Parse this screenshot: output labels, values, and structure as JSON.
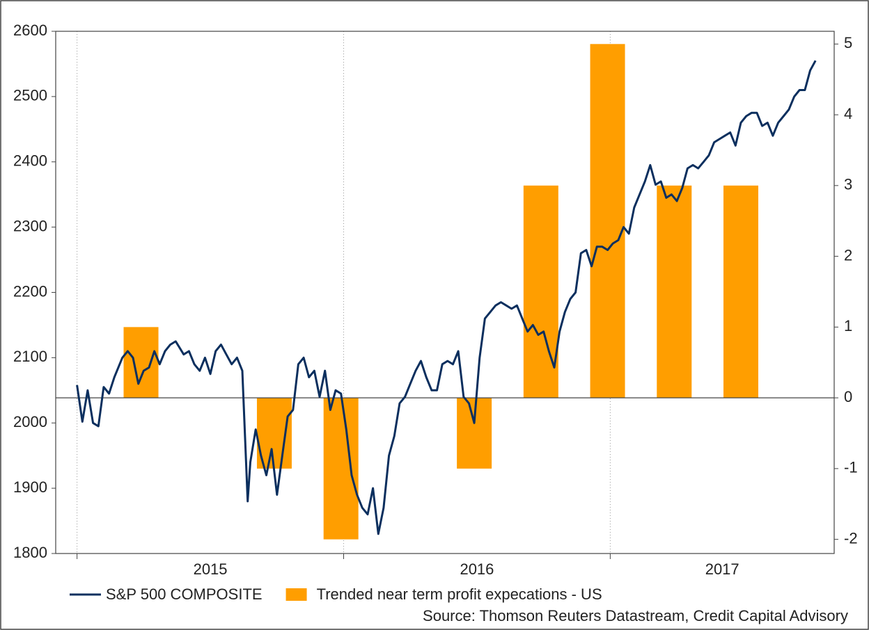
{
  "chart_data": {
    "type": "line",
    "source": "Source: Thomson Reuters Datastream, Credit Capital Advisory",
    "xlim": [
      2014.92,
      2017.84
    ],
    "xticks": [
      {
        "value": 2015,
        "label": "2015"
      },
      {
        "value": 2016,
        "label": "2016"
      },
      {
        "value": 2017,
        "label": "2017"
      }
    ],
    "ylim": [
      1800,
      2600
    ],
    "yticks": [
      1800,
      1900,
      2000,
      2100,
      2200,
      2300,
      2400,
      2500,
      2600
    ],
    "y2lim": [
      -2.2,
      5.18
    ],
    "y2ticks": [
      -2,
      -1,
      0,
      1,
      2,
      3,
      4,
      5
    ],
    "grid": "x",
    "series": [
      {
        "name": "S&P 500 COMPOSITE",
        "type": "line",
        "color": "#0b2f5e",
        "x": [
          2015.0,
          2015.02,
          2015.04,
          2015.06,
          2015.08,
          2015.1,
          2015.12,
          2015.14,
          2015.17,
          2015.19,
          2015.21,
          2015.23,
          2015.25,
          2015.27,
          2015.29,
          2015.31,
          2015.33,
          2015.35,
          2015.37,
          2015.4,
          2015.42,
          2015.44,
          2015.46,
          2015.48,
          2015.5,
          2015.52,
          2015.54,
          2015.56,
          2015.58,
          2015.6,
          2015.62,
          2015.64,
          2015.65,
          2015.67,
          2015.69,
          2015.71,
          2015.73,
          2015.75,
          2015.77,
          2015.79,
          2015.81,
          2015.83,
          2015.85,
          2015.87,
          2015.89,
          2015.91,
          2015.93,
          2015.95,
          2015.97,
          2015.99,
          2016.01,
          2016.03,
          2016.05,
          2016.07,
          2016.09,
          2016.11,
          2016.13,
          2016.15,
          2016.17,
          2016.19,
          2016.21,
          2016.23,
          2016.25,
          2016.27,
          2016.29,
          2016.31,
          2016.33,
          2016.35,
          2016.37,
          2016.39,
          2016.41,
          2016.43,
          2016.45,
          2016.47,
          2016.49,
          2016.51,
          2016.53,
          2016.55,
          2016.57,
          2016.59,
          2016.61,
          2016.63,
          2016.65,
          2016.67,
          2016.69,
          2016.71,
          2016.73,
          2016.75,
          2016.77,
          2016.79,
          2016.81,
          2016.83,
          2016.85,
          2016.87,
          2016.89,
          2016.91,
          2016.93,
          2016.95,
          2016.97,
          2016.99,
          2017.01,
          2017.03,
          2017.05,
          2017.07,
          2017.09,
          2017.11,
          2017.13,
          2017.15,
          2017.17,
          2017.19,
          2017.21,
          2017.23,
          2017.25,
          2017.27,
          2017.29,
          2017.31,
          2017.33,
          2017.35,
          2017.37,
          2017.39,
          2017.41,
          2017.43,
          2017.45,
          2017.47,
          2017.49,
          2017.51,
          2017.53,
          2017.55,
          2017.57,
          2017.59,
          2017.61,
          2017.63,
          2017.65,
          2017.67,
          2017.69,
          2017.71,
          2017.73,
          2017.75,
          2017.77
        ],
        "values": [
          2058,
          2002,
          2050,
          2000,
          1995,
          2055,
          2045,
          2070,
          2100,
          2110,
          2100,
          2060,
          2080,
          2085,
          2110,
          2090,
          2110,
          2120,
          2125,
          2105,
          2110,
          2090,
          2080,
          2100,
          2075,
          2110,
          2120,
          2105,
          2090,
          2100,
          2080,
          1880,
          1940,
          1990,
          1950,
          1920,
          1960,
          1890,
          1950,
          2010,
          2020,
          2090,
          2100,
          2070,
          2080,
          2040,
          2080,
          2020,
          2050,
          2045,
          1990,
          1920,
          1890,
          1870,
          1860,
          1900,
          1830,
          1870,
          1950,
          1980,
          2030,
          2040,
          2060,
          2080,
          2095,
          2070,
          2050,
          2050,
          2090,
          2095,
          2090,
          2110,
          2040,
          2030,
          2000,
          2100,
          2160,
          2170,
          2180,
          2185,
          2180,
          2175,
          2180,
          2160,
          2140,
          2150,
          2135,
          2140,
          2110,
          2085,
          2140,
          2170,
          2190,
          2200,
          2260,
          2265,
          2240,
          2270,
          2270,
          2265,
          2275,
          2280,
          2300,
          2290,
          2330,
          2350,
          2370,
          2395,
          2365,
          2370,
          2345,
          2350,
          2340,
          2360,
          2390,
          2395,
          2390,
          2400,
          2410,
          2430,
          2435,
          2440,
          2445,
          2425,
          2460,
          2470,
          2475,
          2475,
          2455,
          2460,
          2440,
          2460,
          2470,
          2480,
          2500,
          2510,
          2510,
          2540,
          2555
        ]
      },
      {
        "name": "Trended near term profit expecations - US",
        "type": "bar",
        "axis": "y2",
        "color": "#ff9e00",
        "x": [
          2015.24,
          2015.74,
          2015.99,
          2016.49,
          2016.74,
          2016.99,
          2017.24,
          2017.49
        ],
        "values": [
          1,
          -1,
          -2,
          -1,
          3,
          5,
          3,
          3
        ]
      }
    ]
  }
}
